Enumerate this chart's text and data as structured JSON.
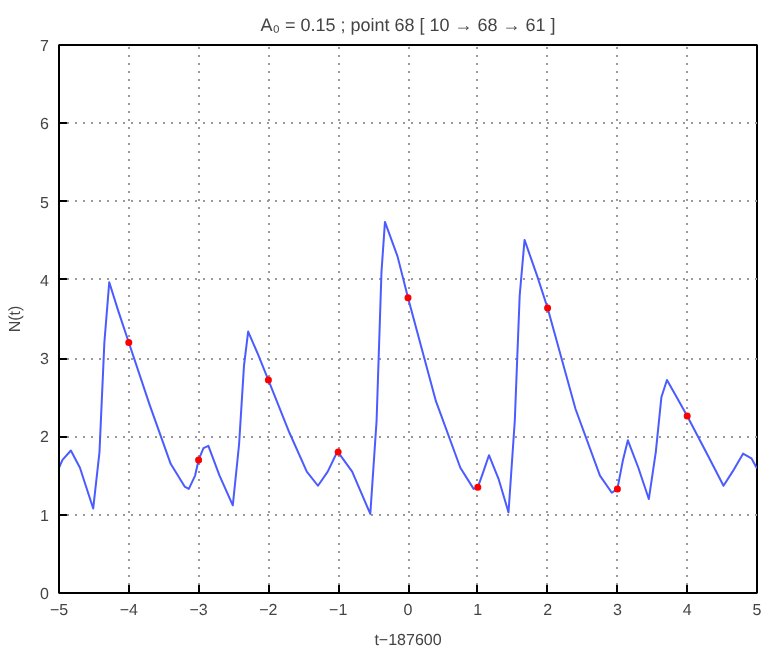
{
  "chart_data": {
    "type": "line",
    "title": "A₀ = 0.15 ; point 68 [ 10 → 68 → 61 ]",
    "xlabel": "t−187600",
    "ylabel": "N(t)",
    "xlim": [
      -5,
      5
    ],
    "ylim": [
      0,
      7
    ],
    "xticks": [
      -5,
      -4,
      -3,
      -2,
      -1,
      0,
      1,
      2,
      3,
      4,
      5
    ],
    "yticks": [
      0,
      1,
      2,
      3,
      4,
      5,
      6,
      7
    ],
    "grid": true,
    "series": [
      {
        "color": "#4a5bff",
        "x": [
          -5,
          -4.95,
          -4.83,
          -4.7,
          -4.51,
          -4.42,
          -4.35,
          -4.28,
          -4.15,
          -4,
          -3.7,
          -3.4,
          -3.2,
          -3.14,
          -3.05,
          -3,
          -2.93,
          -2.86,
          -2.7,
          -2.51,
          -2.42,
          -2.35,
          -2.29,
          -2.15,
          -2,
          -1.7,
          -1.45,
          -1.29,
          -1.15,
          -1.01,
          -0.8,
          -0.54,
          -0.45,
          -0.38,
          -0.33,
          -0.15,
          0,
          0.4,
          0.75,
          0.94,
          1,
          1.08,
          1.16,
          1.3,
          1.44,
          1.53,
          1.6,
          1.67,
          1.85,
          2,
          2.4,
          2.75,
          2.92,
          3,
          3.08,
          3.15,
          3.3,
          3.45,
          3.55,
          3.63,
          3.71,
          3.85,
          4,
          4.3,
          4.52,
          4.65,
          4.8,
          4.92,
          5
        ],
        "values": [
          1.6,
          1.7,
          1.82,
          1.6,
          1.08,
          1.8,
          3.2,
          3.97,
          3.6,
          3.2,
          2.4,
          1.65,
          1.36,
          1.33,
          1.5,
          1.7,
          1.85,
          1.88,
          1.5,
          1.12,
          1.9,
          2.9,
          3.34,
          3.05,
          2.72,
          2.05,
          1.55,
          1.37,
          1.55,
          1.81,
          1.55,
          1.01,
          2.2,
          4.1,
          4.74,
          4.3,
          3.77,
          2.45,
          1.6,
          1.33,
          1.35,
          1.55,
          1.76,
          1.45,
          1.03,
          2.2,
          3.8,
          4.51,
          4.05,
          3.64,
          2.35,
          1.5,
          1.28,
          1.33,
          1.7,
          1.95,
          1.6,
          1.2,
          1.8,
          2.5,
          2.72,
          2.5,
          2.26,
          1.75,
          1.37,
          1.55,
          1.78,
          1.72,
          1.59
        ]
      },
      {
        "type": "scatter",
        "color": "#ff0000",
        "marker": "circle",
        "x": [
          -4,
          -3,
          -2,
          -1,
          0,
          1,
          2,
          3,
          4
        ],
        "values": [
          3.2,
          1.7,
          2.72,
          1.8,
          3.77,
          1.35,
          3.64,
          1.33,
          2.26
        ]
      }
    ]
  }
}
